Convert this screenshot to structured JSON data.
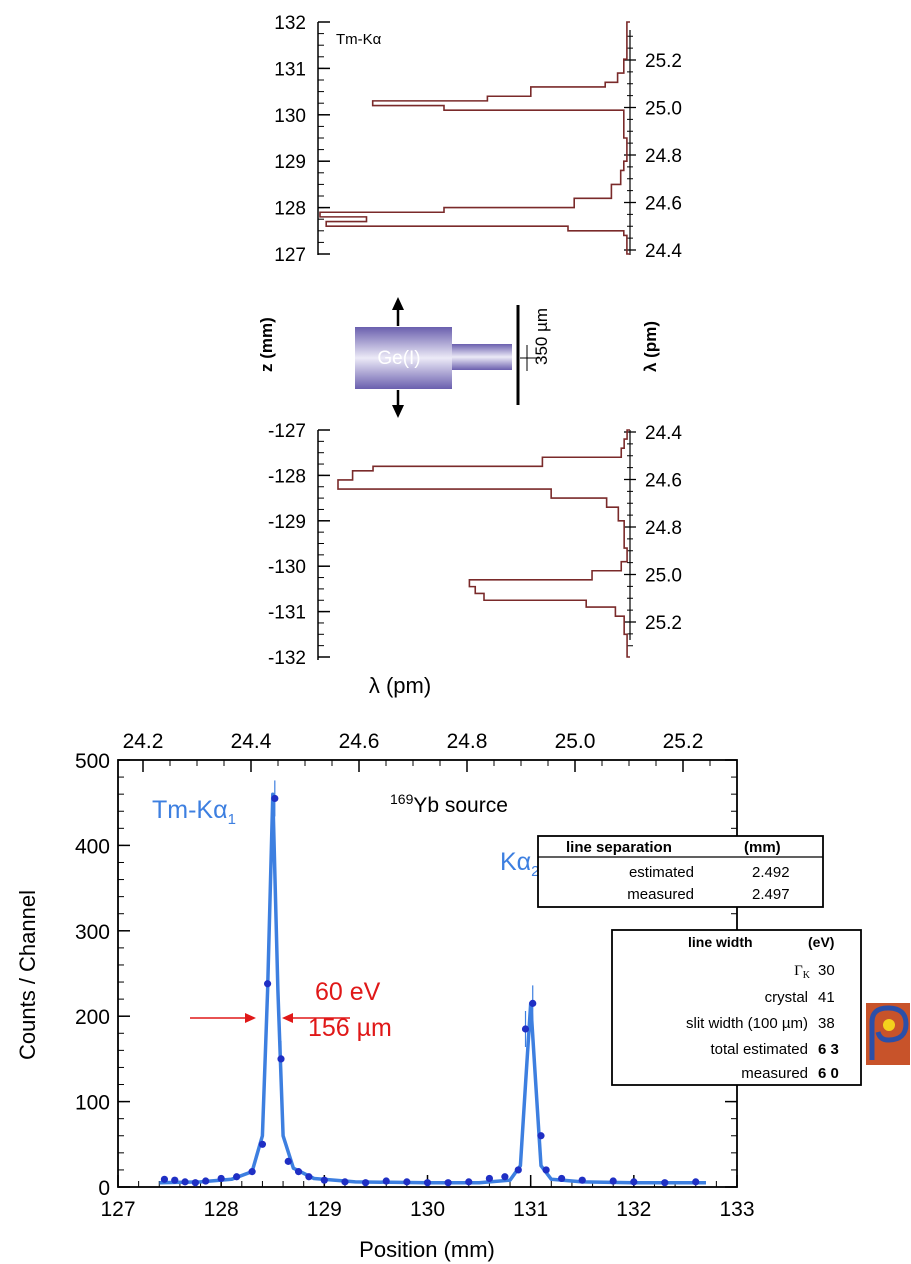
{
  "colors": {
    "histogram": "#7a2a2a",
    "fit": "#3d7fe0",
    "points": "#1f2fc4",
    "annotation_red": "#e01818",
    "detector_light": "#eceaf7",
    "detector_dark": "#6a5fae"
  },
  "detector": {
    "label": "Ge(I)",
    "slit_label": "350 µm"
  },
  "axis_labels": {
    "z_upper": "z (mm)",
    "lambda_right": "λ (pm)",
    "lambda_bottom": "λ (pm)"
  },
  "chart_data": [
    {
      "type": "line",
      "subtype": "horizontal-histogram",
      "label": "Tm-Kα",
      "y_axis_left": {
        "ticks": [
          "132",
          "131",
          "130",
          "129",
          "128",
          "127"
        ],
        "range": [
          127,
          132
        ]
      },
      "y_axis_right": {
        "ticks": [
          "25.2",
          "25.0",
          "24.8",
          "24.6",
          "24.4"
        ]
      },
      "bins": {
        "z": [
          127.0,
          127.2,
          127.4,
          127.5,
          127.6,
          127.7,
          127.8,
          127.9,
          128.0,
          128.2,
          128.5,
          128.8,
          129.0,
          129.5,
          130.0,
          130.1,
          130.2,
          130.3,
          130.4,
          130.6,
          130.7,
          130.9,
          131.2,
          131.6,
          132.0
        ],
        "counts": [
          1,
          1,
          2,
          20,
          98,
          85,
          100,
          60,
          18,
          6,
          3,
          2,
          1,
          2,
          2,
          60,
          83,
          46,
          32,
          8,
          4,
          2,
          1,
          1
        ]
      }
    },
    {
      "type": "line",
      "subtype": "horizontal-histogram",
      "y_axis_left": {
        "ticks": [
          "-127",
          "-128",
          "-129",
          "-130",
          "-131",
          "-132"
        ],
        "range": [
          -132,
          -127
        ]
      },
      "y_axis_right": {
        "ticks": [
          "24.4",
          "24.6",
          "24.8",
          "25.0",
          "25.2"
        ]
      },
      "bins": {
        "z": [
          -127.0,
          -127.2,
          -127.4,
          -127.6,
          -127.8,
          -127.9,
          -128.1,
          -128.3,
          -128.5,
          -128.7,
          -129.0,
          -129.3,
          -129.6,
          -129.9,
          -130.1,
          -130.3,
          -130.45,
          -130.6,
          -130.75,
          -130.9,
          -131.1,
          -131.3,
          -131.5,
          -132.0
        ],
        "counts": [
          1,
          2,
          3,
          30,
          88,
          95,
          100,
          27,
          8,
          4,
          2,
          2,
          1,
          3,
          13,
          55,
          53,
          50,
          15,
          5,
          2,
          2,
          1
        ]
      }
    },
    {
      "type": "scatter",
      "series": [
        {
          "name": "",
          "kind": "points",
          "x": [
            127.45,
            127.55,
            127.65,
            127.75,
            127.85,
            128.0,
            128.15,
            128.3,
            128.4,
            128.45,
            128.52,
            128.58,
            128.65,
            128.75,
            128.85,
            129.0,
            129.2,
            129.4,
            129.6,
            129.8,
            130.0,
            130.2,
            130.4,
            130.6,
            130.75,
            130.88,
            130.95,
            131.02,
            131.1,
            131.15,
            131.3,
            131.5,
            131.8,
            132.0,
            132.3,
            132.6
          ],
          "y": [
            9,
            8,
            6,
            5,
            7,
            10,
            12,
            18,
            50,
            238,
            455,
            150,
            30,
            18,
            12,
            8,
            6,
            5,
            7,
            6,
            5,
            5,
            6,
            10,
            12,
            20,
            185,
            215,
            60,
            20,
            10,
            8,
            7,
            6,
            5,
            6
          ]
        },
        {
          "name": "",
          "kind": "fit",
          "x": [
            127.4,
            127.8,
            128.1,
            128.3,
            128.4,
            128.45,
            128.5,
            128.55,
            128.6,
            128.7,
            128.9,
            129.3,
            130.0,
            130.5,
            130.8,
            130.9,
            130.95,
            131.0,
            131.05,
            131.1,
            131.2,
            131.5,
            132.0,
            132.7
          ],
          "y": [
            5,
            6,
            9,
            18,
            60,
            230,
            460,
            230,
            60,
            22,
            10,
            6,
            5,
            5,
            8,
            25,
            120,
            215,
            120,
            25,
            9,
            6,
            5,
            5
          ]
        }
      ],
      "xlabel": "Position (mm)",
      "ylabel": "Counts / Channel",
      "x2label": "",
      "xlim": [
        127,
        133
      ],
      "ylim": [
        0,
        500
      ],
      "x_ticks": [
        "127",
        "128",
        "129",
        "130",
        "131",
        "132",
        "133"
      ],
      "y_ticks": [
        "0",
        "100",
        "200",
        "300",
        "400",
        "500"
      ],
      "x2_ticks": [
        "24.2",
        "24.4",
        "24.6",
        "24.8",
        "25.0",
        "25.2"
      ],
      "annotations": {
        "peak1": "Tm-Kα",
        "peak1_sub": "1",
        "peak2": "Kα",
        "peak2_sub": "2",
        "source_sup": "169",
        "source": "Yb source",
        "width_ev": "60 eV",
        "width_um": "156  µm"
      },
      "table_separation": {
        "header": "line  separation",
        "unit": "(mm)",
        "rows": [
          {
            "label": "estimated",
            "value": "2.492"
          },
          {
            "label": "measured",
            "value": "2.497"
          }
        ]
      },
      "table_width": {
        "header": "line width",
        "unit": "(eV)",
        "rows": [
          {
            "label": "Γ",
            "label_sub": "K",
            "value": "30"
          },
          {
            "label": "crystal",
            "label_sub": "",
            "value": "41"
          },
          {
            "label": "slit width (100 µm)",
            "label_sub": "",
            "value": "38"
          },
          {
            "label": "total estimated",
            "label_sub": "",
            "value": "6 3"
          },
          {
            "label": "measured",
            "label_sub": "",
            "value": "6 0"
          }
        ]
      }
    }
  ]
}
